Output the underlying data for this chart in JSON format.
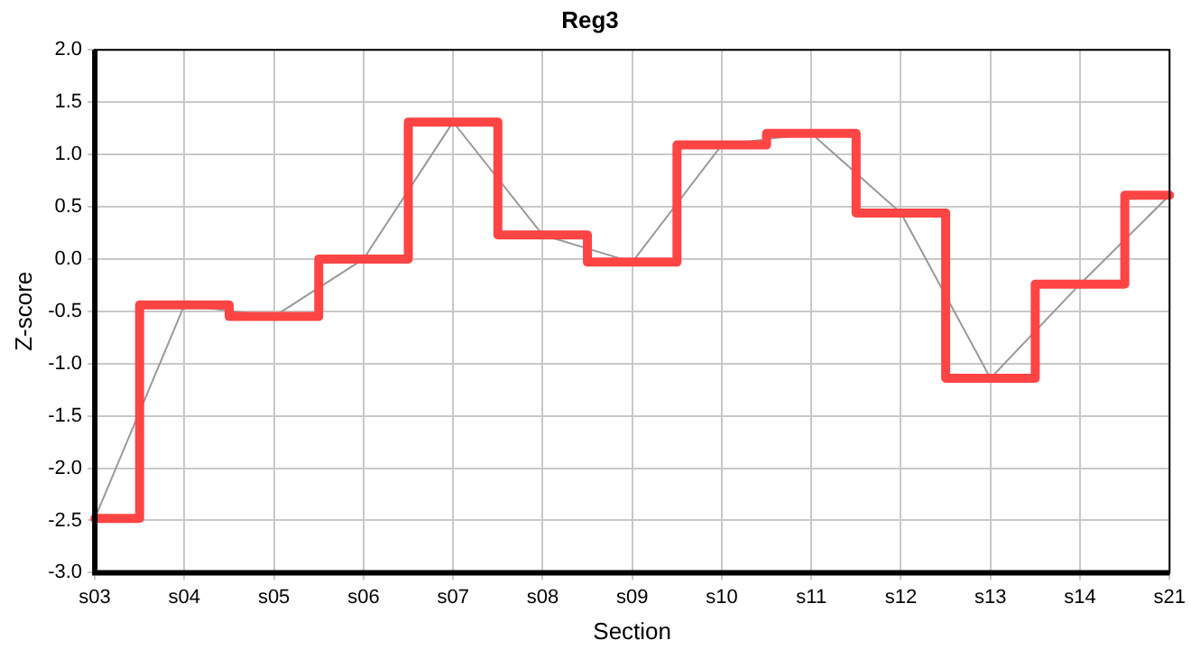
{
  "chart_data": {
    "type": "line",
    "title": "Reg3",
    "xlabel": "Section",
    "ylabel": "Z-score",
    "categories": [
      "s03",
      "s04",
      "s05",
      "s06",
      "s07",
      "s08",
      "s09",
      "s10",
      "s11",
      "s12",
      "s13",
      "s14",
      "s21"
    ],
    "series": [
      {
        "type": "line",
        "color": "#999999",
        "values": [
          -2.48,
          -0.44,
          -0.55,
          0.0,
          1.31,
          0.23,
          -0.03,
          1.09,
          1.2,
          0.44,
          -1.14,
          -0.24,
          0.61
        ]
      },
      {
        "type": "step",
        "color": "#ff4444",
        "values": [
          -2.48,
          -0.44,
          -0.55,
          0.0,
          1.31,
          0.23,
          -0.03,
          1.09,
          1.2,
          0.44,
          -1.14,
          -0.24,
          0.61
        ]
      }
    ],
    "ylim": [
      -3.0,
      2.0
    ],
    "yticks": [
      {
        "value": -3,
        "label": "-3.0"
      },
      {
        "value": -2.5,
        "label": "-2.5"
      },
      {
        "value": -2,
        "label": "-2.0"
      },
      {
        "value": -1.5,
        "label": "-1.5"
      },
      {
        "value": -1,
        "label": "-1.0"
      },
      {
        "value": -0.5,
        "label": "-0.5"
      },
      {
        "value": 0,
        "label": "0.0"
      },
      {
        "value": 0.5,
        "label": "0.5"
      },
      {
        "value": 1,
        "label": "1.0"
      },
      {
        "value": 1.5,
        "label": "1.5"
      },
      {
        "value": 2,
        "label": "2.0"
      }
    ],
    "grid": true,
    "legend": false,
    "marker": "none",
    "line_style": "solid"
  }
}
